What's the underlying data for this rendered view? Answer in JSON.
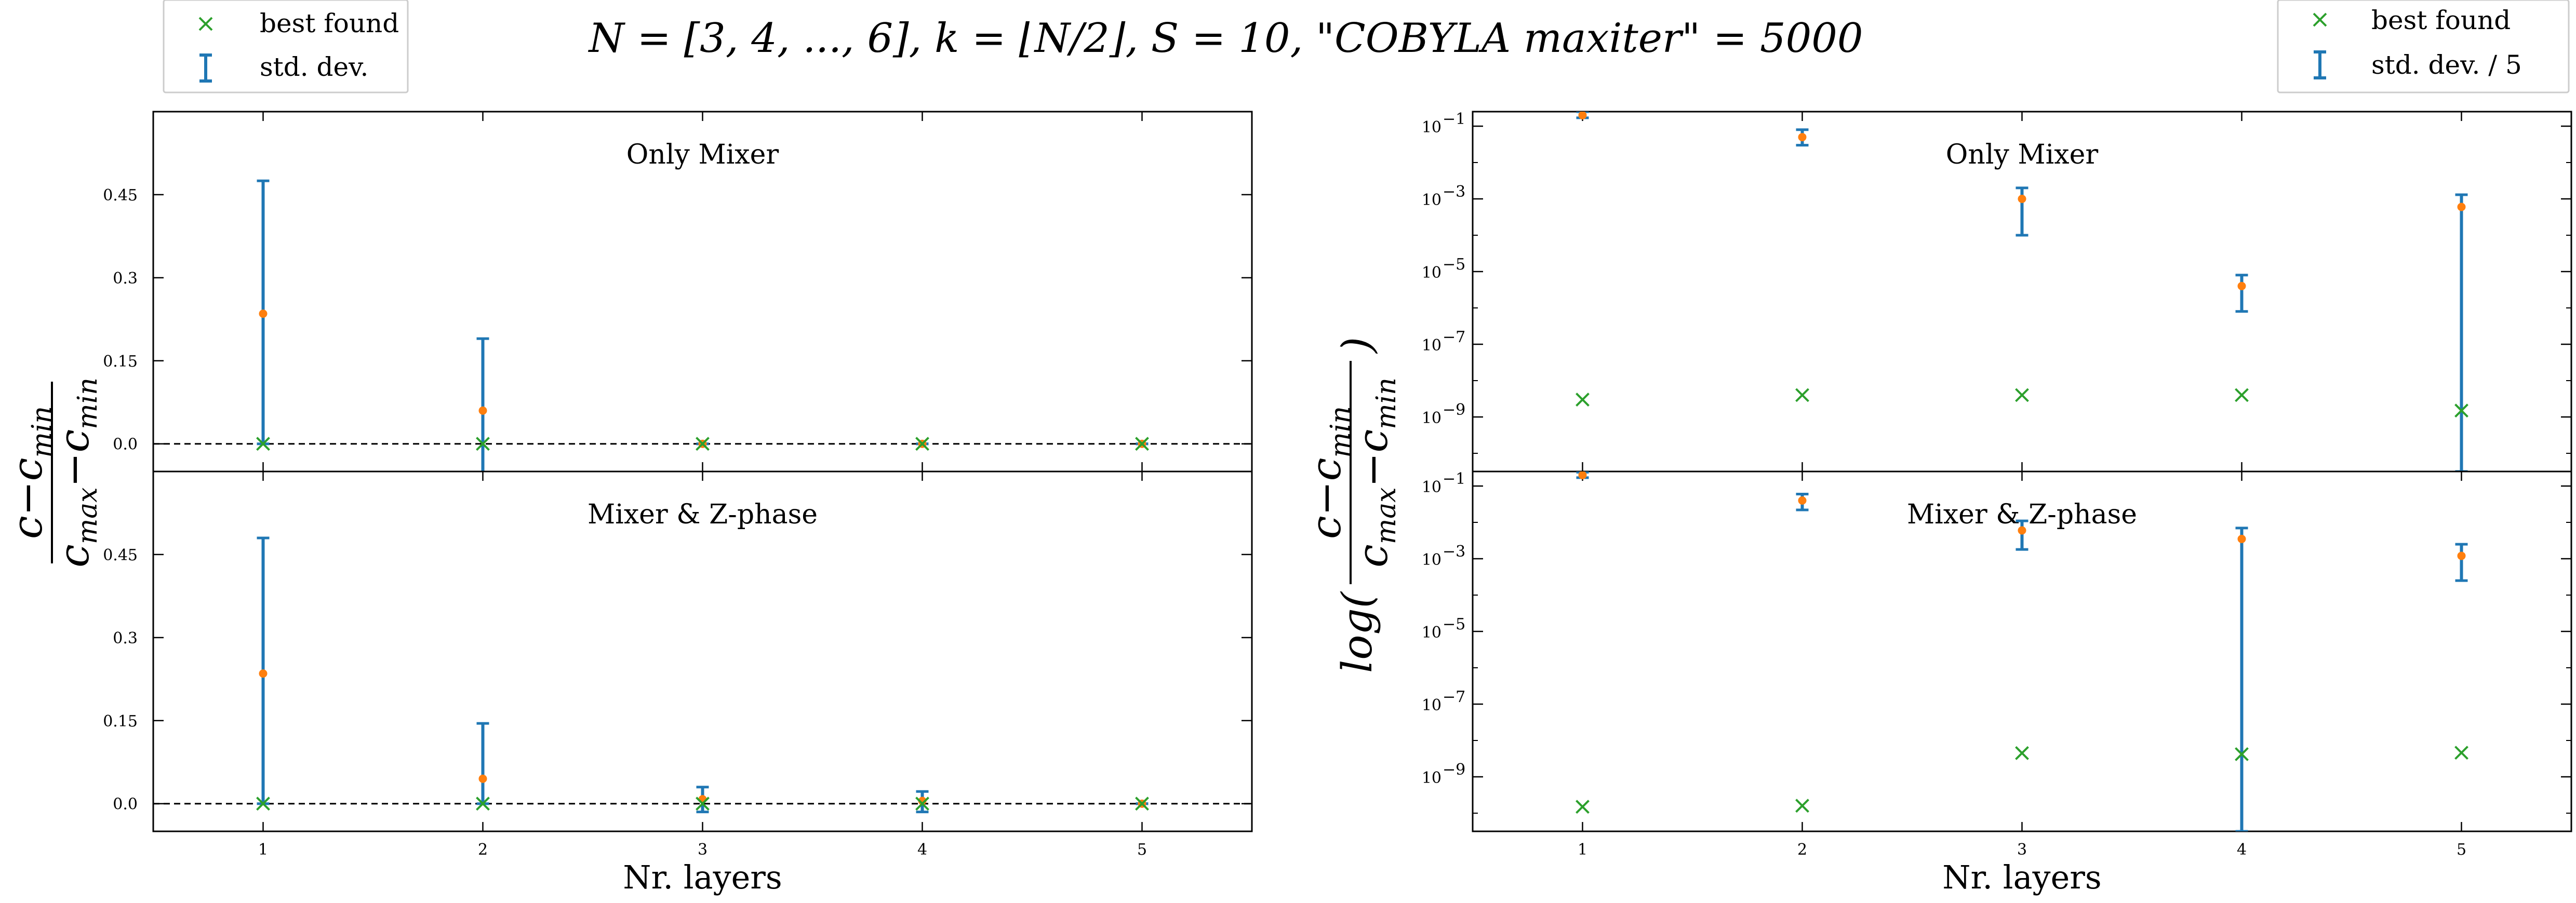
{
  "headline": "N = [3, 4, ..., 6],    k = ⌊N/2⌋,    S = 10,    \"COBYLA maxiter\" = 5000",
  "left_ylabel": {
    "num": "c−c",
    "num_sub": "min",
    "den": "c",
    "den_sub1": "max",
    "den_mid": "−c",
    "den_sub2": "min"
  },
  "right_ylabel": {
    "prefix": "log(",
    "num": "c−c",
    "num_sub": "min",
    "den": "c",
    "den_sub1": "max",
    "den_mid": "−c",
    "den_sub2": "min",
    "suffix": ")"
  },
  "legend_left": {
    "best": "best found",
    "std": "std. dev."
  },
  "legend_right": {
    "best": "best found",
    "std": "std. dev. / 5"
  },
  "colors": {
    "errorbar": "#1f77b4",
    "mean": "#ff7f0e",
    "best": "#2ca02c"
  },
  "chart_data": [
    {
      "id": "left-top",
      "type": "scatter",
      "title": "Only Mixer",
      "xlabel": "",
      "x": [
        1,
        2,
        3,
        4,
        5
      ],
      "xlim": [
        0.5,
        5.5
      ],
      "ylim": [
        -0.05,
        0.6
      ],
      "yticks": [
        0.0,
        0.15,
        0.3,
        0.45
      ],
      "ytick_labels": [
        "0.0",
        "0.15",
        "0.3",
        "0.45"
      ],
      "zero_line": true,
      "mean": [
        0.235,
        0.06,
        0.0,
        0.0,
        0.0
      ],
      "err_low": [
        0.0,
        -0.08,
        0.0,
        0.0,
        0.0
      ],
      "err_high": [
        0.475,
        0.19,
        0.0,
        0.0,
        0.0
      ],
      "best": [
        0.0,
        0.0,
        0.0,
        0.0,
        0.0
      ]
    },
    {
      "id": "left-bottom",
      "type": "scatter",
      "title": "Mixer & Z-phase",
      "xlabel": "Nr. layers",
      "x": [
        1,
        2,
        3,
        4,
        5
      ],
      "xlim": [
        0.5,
        5.5
      ],
      "ylim": [
        -0.05,
        0.6
      ],
      "yticks": [
        0.0,
        0.15,
        0.3,
        0.45
      ],
      "ytick_labels": [
        "0.0",
        "0.15",
        "0.3",
        "0.45"
      ],
      "xtick_labels": [
        "1",
        "2",
        "3",
        "4",
        "5"
      ],
      "zero_line": true,
      "mean": [
        0.235,
        0.045,
        0.008,
        0.005,
        0.0
      ],
      "err_low": [
        0.0,
        0.0,
        -0.015,
        -0.015,
        0.0
      ],
      "err_high": [
        0.48,
        0.145,
        0.03,
        0.022,
        0.0
      ],
      "best": [
        0.0,
        0.0,
        0.0,
        0.0,
        0.0
      ]
    },
    {
      "id": "right-top",
      "type": "scatter",
      "title": "Only Mixer",
      "xlabel": "",
      "yscale": "log",
      "x": [
        1,
        2,
        3,
        4,
        5
      ],
      "xlim": [
        0.5,
        5.5
      ],
      "ylim_exp": [
        -10.5,
        -0.6
      ],
      "yticks_exp": [
        -1,
        -3,
        -5,
        -7,
        -9
      ],
      "ytick_labels": [
        "10",
        "10",
        "10",
        "10",
        "10"
      ],
      "ytick_exps": [
        "−1",
        "−3",
        "−5",
        "−7",
        "−9"
      ],
      "mean": [
        0.2,
        0.05,
        0.001,
        4e-06,
        0.0006
      ],
      "err_low": [
        0.17,
        0.03,
        0.0001,
        8e-07,
        3e-11
      ],
      "err_high": [
        0.25,
        0.08,
        0.002,
        8e-06,
        0.0013
      ],
      "best": [
        3e-09,
        4e-09,
        4e-09,
        4e-09,
        1.5e-09
      ]
    },
    {
      "id": "right-bottom",
      "type": "scatter",
      "title": "Mixer & Z-phase",
      "xlabel": "Nr. layers",
      "yscale": "log",
      "x": [
        1,
        2,
        3,
        4,
        5
      ],
      "xlim": [
        0.5,
        5.5
      ],
      "ylim_exp": [
        -10.5,
        -0.6
      ],
      "yticks_exp": [
        -1,
        -3,
        -5,
        -7,
        -9
      ],
      "ytick_labels": [
        "10",
        "10",
        "10",
        "10",
        "10"
      ],
      "ytick_exps": [
        "−1",
        "−3",
        "−5",
        "−7",
        "−9"
      ],
      "xtick_labels": [
        "1",
        "2",
        "3",
        "4",
        "5"
      ],
      "mean": [
        0.2,
        0.04,
        0.006,
        0.0035,
        0.0012
      ],
      "err_low": [
        0.17,
        0.022,
        0.0018,
        3e-11,
        0.00025
      ],
      "err_high": [
        0.24,
        0.06,
        0.011,
        0.007,
        0.0025
      ],
      "best": [
        1.5e-10,
        1.6e-10,
        4.5e-09,
        4.2e-09,
        4.6e-09
      ]
    }
  ]
}
